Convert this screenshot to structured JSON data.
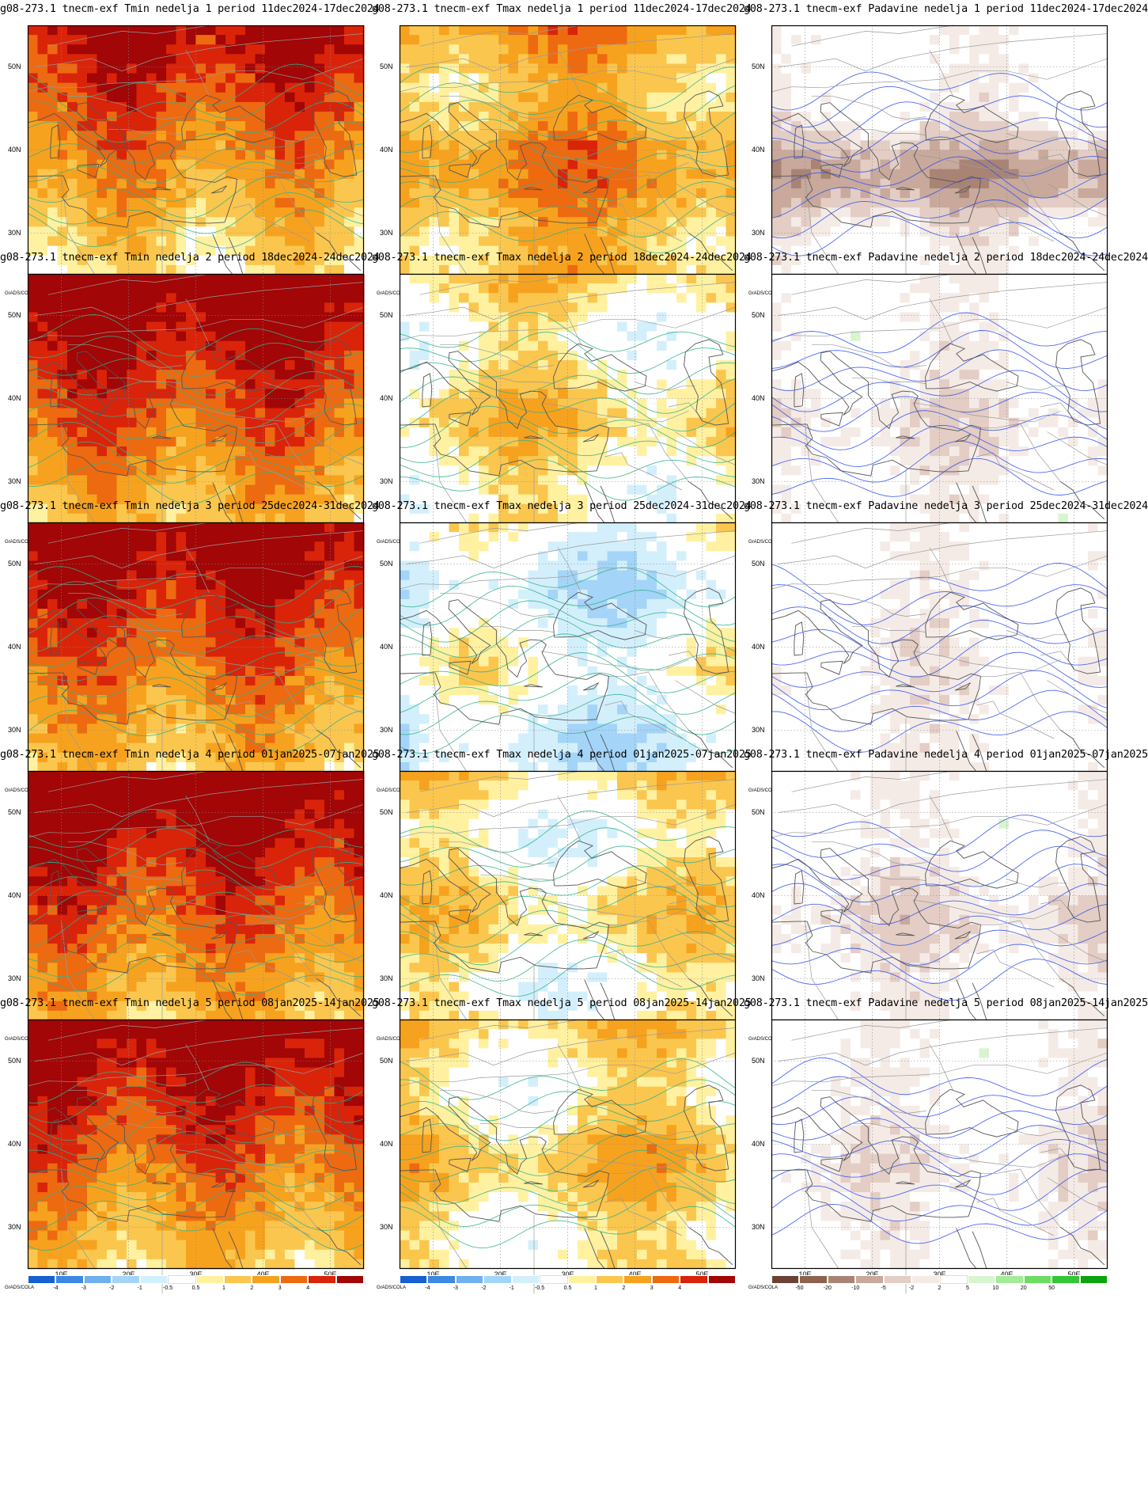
{
  "figure": {
    "rows": [
      {
        "panels": [
          {
            "title": "g08-273.1 tnecm-exf Tmin nedelja 1 period 11dec2024-17dec2024",
            "variable": "tmin",
            "intensity": 0.55
          },
          {
            "title": "g08-273.1 tnecm-exf Tmax nedelja 1 period 11dec2024-17dec2024",
            "variable": "tmax",
            "intensity": 0.45
          },
          {
            "title": "g08-273.1 tnecm-exf Padavine nedelja 1 period 11dec2024-17dec2024",
            "variable": "prec",
            "intensity": -0.7
          }
        ]
      },
      {
        "panels": [
          {
            "title": "g08-273.1 tnecm-exf Tmin nedelja 2 period 18dec2024-24dec2024",
            "variable": "tmin",
            "intensity": 0.75
          },
          {
            "title": "g08-273.1 tnecm-exf Tmax nedelja 2 period 18dec2024-24dec2024",
            "variable": "tmax",
            "intensity": 0.15
          },
          {
            "title": "g08-273.1 tnecm-exf Padavine nedelja 2 period 18dec2024-24dec2024",
            "variable": "prec",
            "intensity": -0.2
          }
        ]
      },
      {
        "panels": [
          {
            "title": "g08-273.1 tnecm-exf Tmin nedelja 3 period 25dec2024-31dec2024",
            "variable": "tmin",
            "intensity": 0.7
          },
          {
            "title": "g08-273.1 tnecm-exf Tmax nedelja 3 period 25dec2024-31dec2024",
            "variable": "tmax",
            "intensity": -0.15
          },
          {
            "title": "g08-273.1 tnecm-exf Padavine nedelja 3 period 25dec2024-31dec2024",
            "variable": "prec",
            "intensity": -0.1
          }
        ]
      },
      {
        "panels": [
          {
            "title": "g08-273.1 tnecm-exf Tmin nedelja 4 period 01jan2025-07jan2025",
            "variable": "tmin",
            "intensity": 0.75
          },
          {
            "title": "g08-273.1 tnecm-exf Tmax nedelja 4 period 01jan2025-07jan2025",
            "variable": "tmax",
            "intensity": 0.1
          },
          {
            "title": "g08-273.1 tnecm-exf Padavine nedelja 4 period 01jan2025-07jan2025",
            "variable": "prec",
            "intensity": -0.25
          }
        ]
      },
      {
        "panels": [
          {
            "title": "g08-273.1 tnecm-exf Tmin nedelja 5 period 08jan2025-14jan2025",
            "variable": "tmin",
            "intensity": 0.7
          },
          {
            "title": "g08-273.1 tnecm-exf Tmax nedelja 5 period 08jan2025-14jan2025",
            "variable": "tmax",
            "intensity": 0.2
          },
          {
            "title": "g08-273.1 tnecm-exf Padavine nedelja 5 period 08jan2025-14jan2025",
            "variable": "prec",
            "intensity": -0.15
          }
        ]
      }
    ],
    "lat_labels": [
      "50N",
      "40N",
      "30N"
    ],
    "lon_labels": [
      "10E",
      "20E",
      "30E",
      "40E",
      "50E"
    ],
    "lon_range": [
      5,
      55
    ],
    "lat_range": [
      25,
      55
    ],
    "credit": "GrADS/COLA",
    "temp_scale": {
      "labels": [
        "-4",
        "-3",
        "-2",
        "-1",
        "-0.5",
        "0.5",
        "1",
        "2",
        "3",
        "4"
      ],
      "colors": [
        "#1660d0",
        "#3d88e2",
        "#6fb0ef",
        "#a4d4f8",
        "#d3effc",
        "#ffffff",
        "#fff1a0",
        "#fbc64e",
        "#f7a21e",
        "#ed6a10",
        "#d9240a",
        "#a20606"
      ]
    },
    "prec_scale": {
      "labels": [
        "-50",
        "-20",
        "-10",
        "-5",
        "-2",
        "2",
        "5",
        "10",
        "20",
        "50"
      ],
      "colors": [
        "#6b4333",
        "#8c6350",
        "#a98474",
        "#c8a99c",
        "#e3cdc4",
        "#f5ebe6",
        "#ffffff",
        "#d7f5cf",
        "#a4eb98",
        "#6ddc63",
        "#33c733",
        "#0da40d"
      ]
    },
    "contour_colors": {
      "tmin": "#2fb38a",
      "tmax": "#2fb38a",
      "prec": "#2f50f0"
    },
    "border_color": "#9a9a9a",
    "coast_color": "#555555"
  }
}
